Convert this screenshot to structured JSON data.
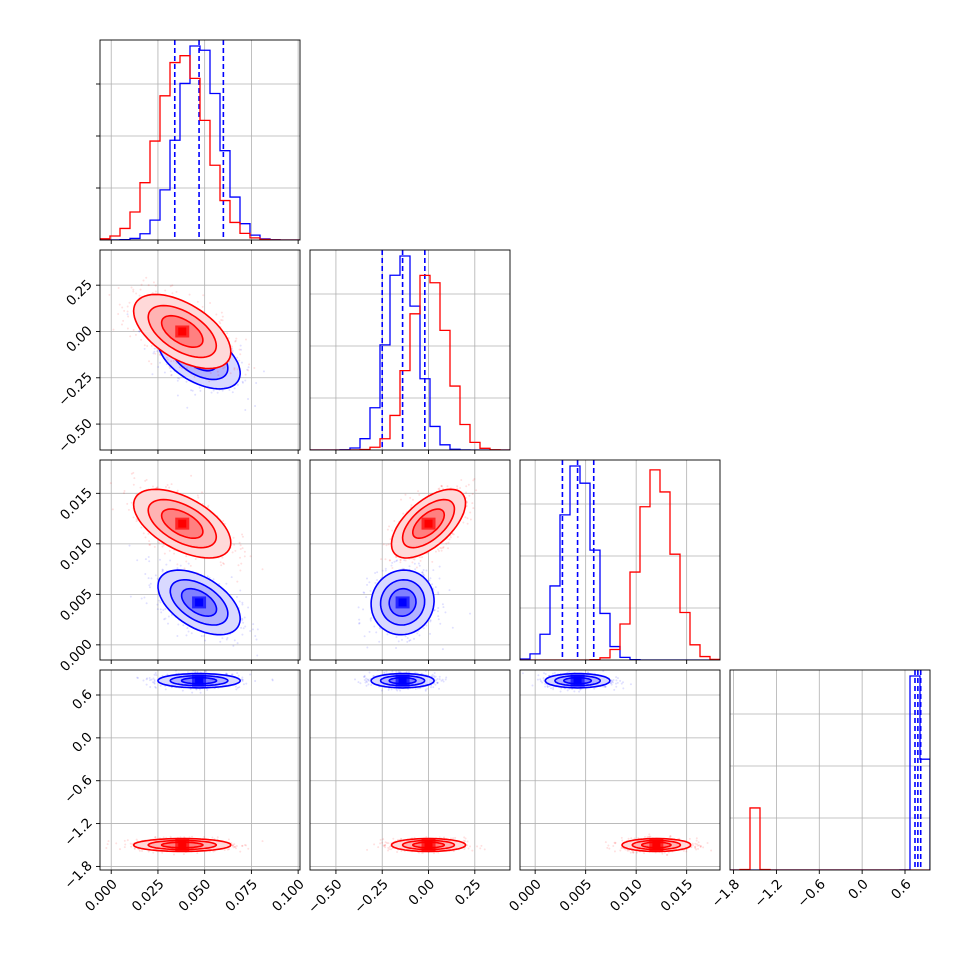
{
  "chart_data": {
    "type": "corner",
    "title": "",
    "parameters": [
      {
        "ticks": [
          "0.000",
          "0.025",
          "0.050",
          "0.075",
          "0.100"
        ],
        "lim": [
          -0.006,
          0.101
        ]
      },
      {
        "ticks": [
          "−0.50",
          "−0.25",
          "0.00",
          "0.25"
        ],
        "lim": [
          -0.64,
          0.44
        ]
      },
      {
        "ticks": [
          "0.000",
          "0.005",
          "0.010",
          "0.015"
        ],
        "lim": [
          -0.0015,
          0.0183
        ]
      },
      {
        "ticks": [
          "−1.8",
          "−1.2",
          "−0.6",
          "0.0",
          "0.6"
        ],
        "lim": [
          -1.85,
          0.95
        ]
      }
    ],
    "series": [
      {
        "color": "#0000ff",
        "means": [
          0.047,
          -0.14,
          0.0042,
          0.8
        ],
        "sds": [
          0.011,
          0.085,
          0.0016,
          0.05
        ],
        "quantiles": [
          [
            0.034,
            0.047,
            0.06
          ],
          [
            -0.25,
            -0.14,
            -0.02
          ],
          [
            0.0027,
            0.0042,
            0.0058
          ],
          [
            0.74,
            0.78,
            0.82
          ]
        ],
        "corr": [
          [
            1,
            -0.5,
            -0.5,
            0
          ],
          [
            -0.5,
            1,
            0.05,
            0
          ],
          [
            -0.5,
            0.05,
            1,
            0
          ],
          [
            0,
            0,
            0,
            1
          ]
        ],
        "hist_peaks": [
          1.0,
          1.0,
          1.0,
          1.0
        ]
      },
      {
        "color": "#ff0000",
        "means": [
          0.038,
          0.0,
          0.012,
          -1.5
        ],
        "sds": [
          0.013,
          0.1,
          0.0017,
          0.045
        ],
        "corr": [
          [
            1,
            -0.55,
            -0.55,
            0
          ],
          [
            -0.55,
            1,
            0.6,
            0
          ],
          [
            -0.55,
            0.6,
            1,
            0
          ],
          [
            0,
            0,
            0,
            1
          ]
        ],
        "hist_peaks": [
          0.95,
          0.9,
          0.98,
          0.32
        ]
      }
    ],
    "grid": true
  }
}
